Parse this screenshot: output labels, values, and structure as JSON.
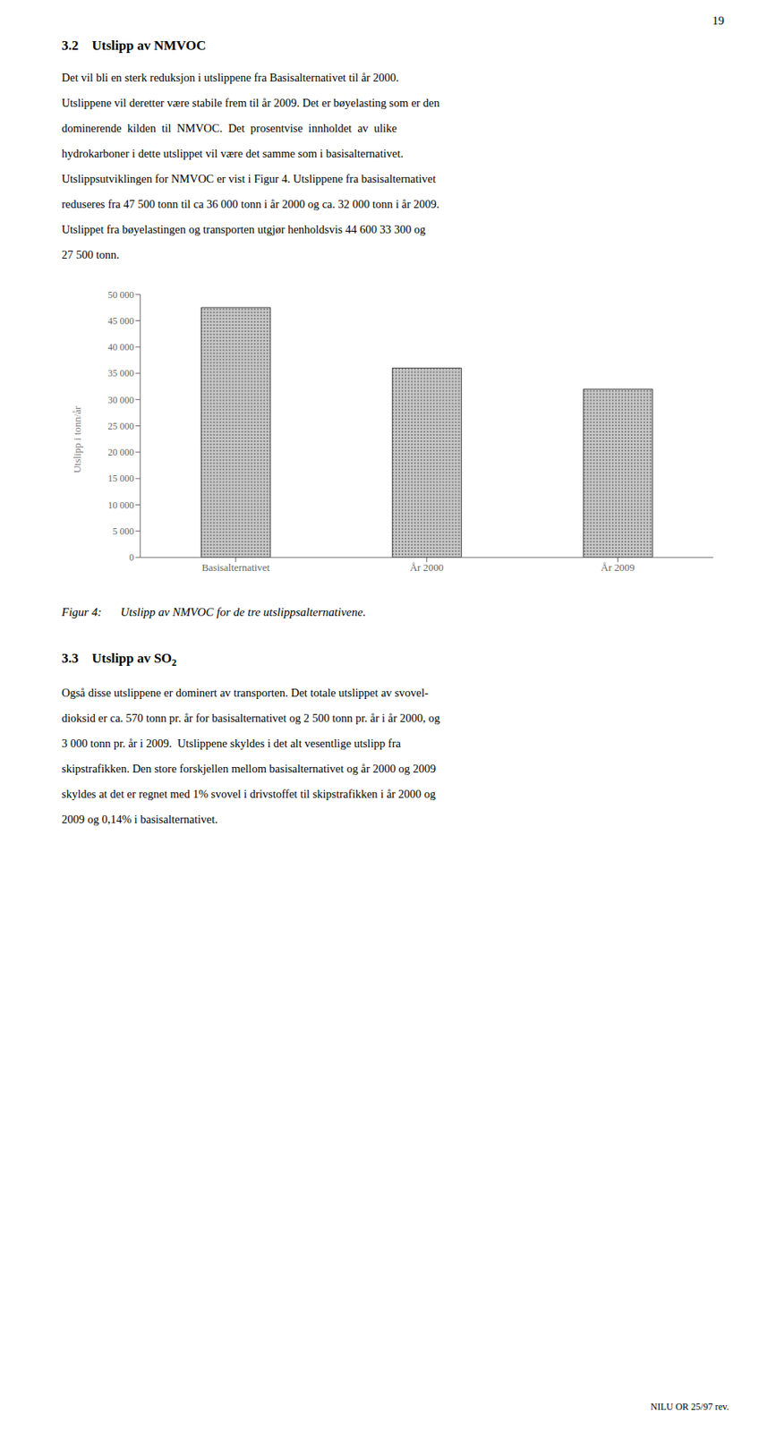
{
  "page_number": "19",
  "sections": [
    {
      "heading": "3.2    Utslipp av NMVOC",
      "lines": [
        "Det vil bli en sterk reduksjon i utslippene fra Basisalternativet til år 2000.",
        "Utslippene vil deretter være stabile frem til år 2009. Det er bøyelasting som er den",
        "dominerende  kilden  til  NMVOC.  Det  prosentvise  innholdet  av  ulike",
        "hydrokarboner i dette utslippet vil være det samme som i basisalternativet.",
        "Utslippsutviklingen for NMVOC er vist i Figur 4. Utslippene fra basisalternativet",
        "reduseres fra 47 500 tonn til ca 36 000 tonn i år 2000 og ca. 32 000 tonn i år 2009.",
        "Utslippet fra bøyelastingen og transporten utgjør henholdsvis 44 600 33 300 og",
        "27 500 tonn."
      ]
    }
  ],
  "chart_data": {
    "type": "bar",
    "categories": [
      "Basisalternativet",
      "År 2000",
      "År 2009"
    ],
    "values": [
      47500,
      36000,
      32000
    ],
    "color": "#c8c8c8",
    "ylabel": "Utslipp i tonn/år",
    "ylim": [
      0,
      50000
    ],
    "yticks": [
      0,
      {
        "value": 5000,
        "label": "5 000"
      },
      {
        "value": 10000,
        "label": "10 000"
      },
      {
        "value": 15000,
        "label": "15 000"
      },
      {
        "value": 20000,
        "label": "20 000"
      },
      {
        "value": 25000,
        "label": "25 000"
      },
      {
        "value": 30000,
        "label": "30 000"
      },
      {
        "value": 35000,
        "label": "35 000"
      },
      {
        "value": 40000,
        "label": "40 000"
      },
      {
        "value": 45000,
        "label": "45 000"
      },
      {
        "value": 50000,
        "label": "50 000"
      }
    ],
    "grid": false
  },
  "caption": {
    "label": "Figur 4:",
    "text": "Utslipp av NMVOC for de tre utslippsalternativene."
  },
  "sections_after": [
    {
      "heading": "3.3    Utslipp av SO",
      "heading_subscript": "2",
      "lines": [
        "Også disse utslippene er dominert av transporten. Det totale utslippet av svovel-",
        "dioksid er ca. 570 tonn pr. år for basisalternativet og 2 500 tonn pr. år i år 2000, og",
        "3 000 tonn pr. år i 2009.  Utslippene skyldes i det alt vesentlige utslipp fra",
        "skipstrafikken. Den store forskjellen mellom basisalternativet og år 2000 og 2009",
        "skyldes at det er regnet med 1% svovel i drivstoffet til skipstrafikken i år 2000 og",
        "2009 og 0,14% i basisalternativet."
      ]
    }
  ],
  "footer": "NILU OR 25/97 rev."
}
